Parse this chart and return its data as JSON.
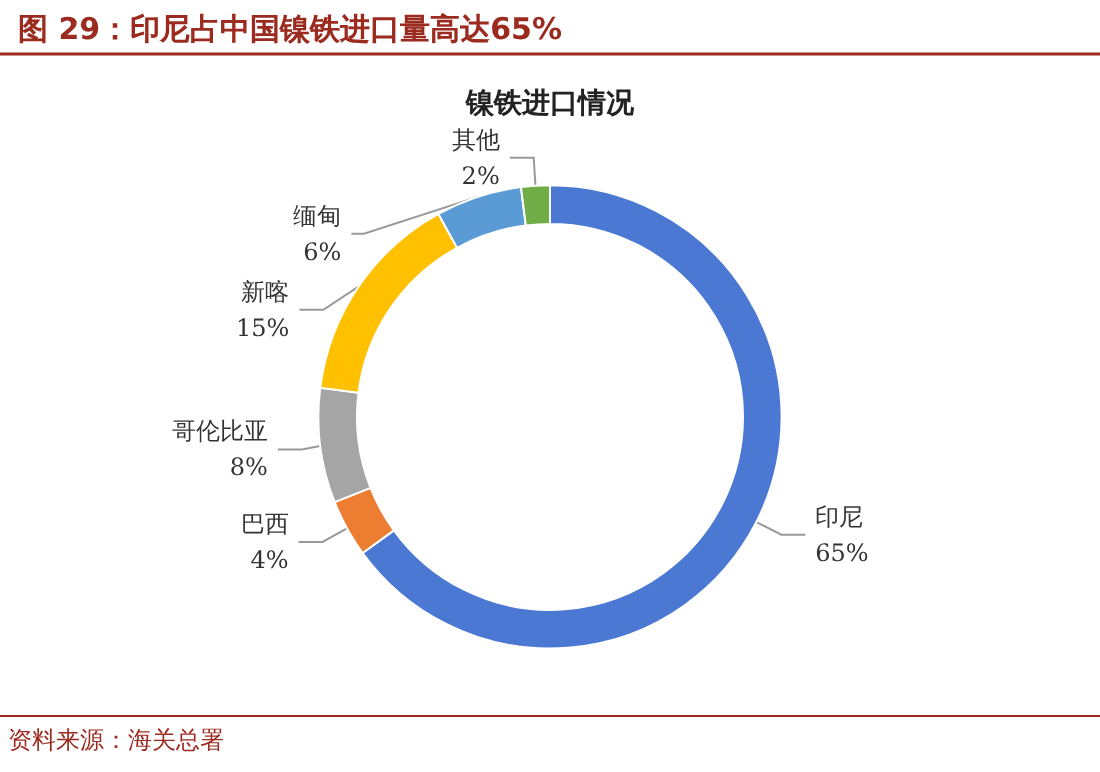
{
  "chart_data": {
    "type": "donut",
    "title": "图 29：印尼占中国镍铁进口量高达65%",
    "subtitle": "镍铁进口情况",
    "categories": [
      "印尼",
      "巴西",
      "哥伦比亚",
      "新喀",
      "缅甸",
      "其他"
    ],
    "values": [
      65,
      4,
      8,
      15,
      6,
      2
    ],
    "value_labels": [
      "65%",
      "4%",
      "8%",
      "15%",
      "6%",
      "2%"
    ],
    "colors": [
      "#4a78d2",
      "#ed7d31",
      "#a5a5a5",
      "#ffc000",
      "#5b9bd5",
      "#70ad47"
    ],
    "legend": false,
    "annotations": [
      "资料来源：海关总署"
    ]
  }
}
